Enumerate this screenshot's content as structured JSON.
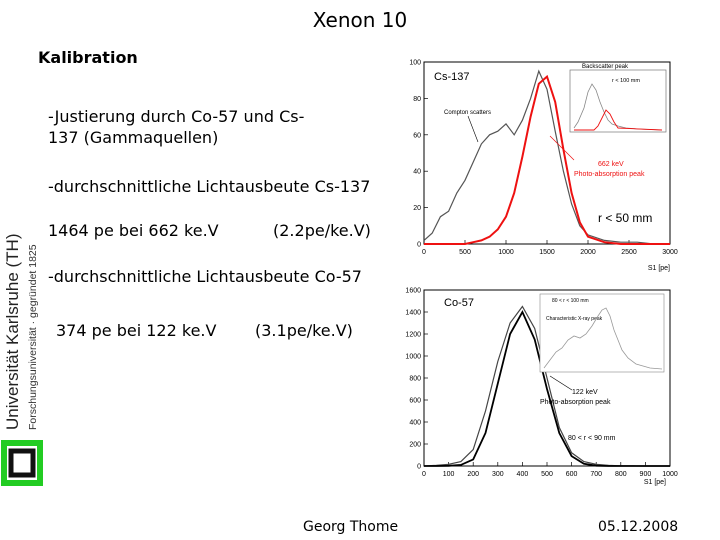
{
  "slide": {
    "title": "Xenon 10",
    "subtitle": "Kalibration",
    "bullet_justierung": "-Justierung durch Co-57 und Cs-137 (Gammaquellen)",
    "bullet_cs137": "-durchschnittliche Lichtausbeute Cs-137",
    "cs137_value": "1464 pe bei 662 ke.V",
    "cs137_ratio": "(2.2pe/ke.V)",
    "bullet_co57": "-durchschnittliche Lichtausbeute Co-57",
    "co57_value": "374 pe bei 122 ke.V",
    "co57_ratio": "(3.1pe/ke.V)"
  },
  "footer": {
    "author": "Georg Thome",
    "date": "05.12.2008"
  },
  "logo": {
    "university_name": "Universität Karlsruhe (TH)",
    "university_tagline": "Forschungsuniversität · gegründet 1825",
    "color": "#22cc22"
  },
  "chart_data": [
    {
      "type": "histogram",
      "label": "Cs-137",
      "xlabel": "S1 [pe]",
      "xlim": [
        0,
        3000
      ],
      "ylim": [
        0,
        100
      ],
      "x_ticks": [
        "0",
        "500",
        "1000",
        "1500",
        "2000",
        "2500",
        "3000"
      ],
      "y_ticks": [
        "0",
        "20",
        "40",
        "60",
        "80",
        "100"
      ],
      "annotations": [
        "Compton scatters",
        "662 keV",
        "Photo-absorption peak",
        "r < 50 mm"
      ],
      "inset": {
        "title": "Backscatter peak",
        "legend": "r < 100 mm"
      },
      "series": [
        {
          "name": "gray data",
          "color": "#555555",
          "x": [
            0,
            100,
            200,
            300,
            400,
            500,
            600,
            700,
            800,
            900,
            1000,
            1100,
            1200,
            1300,
            1400,
            1500,
            1600,
            1700,
            1800,
            1900,
            2000,
            2200,
            2400,
            2600,
            2800,
            3000
          ],
          "values": [
            2,
            6,
            15,
            18,
            28,
            35,
            45,
            55,
            60,
            62,
            66,
            60,
            68,
            80,
            95,
            85,
            62,
            40,
            22,
            10,
            5,
            2,
            1,
            1,
            0,
            0
          ]
        },
        {
          "name": "red fit",
          "color": "#ee1111",
          "x": [
            0,
            100,
            200,
            300,
            400,
            500,
            600,
            700,
            800,
            900,
            1000,
            1100,
            1200,
            1300,
            1400,
            1500,
            1600,
            1700,
            1800,
            1900,
            2000,
            2200,
            2400,
            2600,
            2800,
            3000
          ],
          "values": [
            0,
            0,
            0,
            0,
            0,
            0,
            1,
            2,
            4,
            8,
            15,
            28,
            48,
            70,
            88,
            92,
            78,
            52,
            28,
            12,
            4,
            1,
            0,
            0,
            0,
            0
          ]
        }
      ]
    },
    {
      "type": "histogram",
      "label": "Co-57",
      "xlabel": "S1 [pe]",
      "xlim": [
        0,
        1000
      ],
      "ylim": [
        0,
        1600
      ],
      "x_ticks": [
        "0",
        "100",
        "200",
        "300",
        "400",
        "500",
        "600",
        "700",
        "800",
        "900",
        "1000"
      ],
      "y_ticks": [
        "0",
        "200",
        "400",
        "600",
        "800",
        "1000",
        "1200",
        "1400",
        "1600"
      ],
      "annotations": [
        "122 keV",
        "Photo-absorption peak",
        "80 < r < 90 mm"
      ],
      "inset": {
        "title": "Characteristic X-ray peak",
        "legend": "80 < r < 100 mm"
      },
      "series": [
        {
          "name": "data",
          "color": "#444444",
          "x": [
            0,
            50,
            100,
            150,
            200,
            250,
            300,
            350,
            400,
            450,
            500,
            550,
            600,
            650,
            700,
            750,
            800,
            850,
            900,
            950,
            1000
          ],
          "values": [
            0,
            5,
            15,
            40,
            150,
            500,
            950,
            1300,
            1450,
            1250,
            800,
            350,
            120,
            40,
            15,
            5,
            2,
            1,
            0,
            0,
            0
          ]
        },
        {
          "name": "fit",
          "color": "#000000",
          "x": [
            0,
            50,
            100,
            150,
            200,
            250,
            300,
            350,
            400,
            450,
            500,
            550,
            600,
            650,
            700,
            750,
            800,
            850,
            900,
            950,
            1000
          ],
          "values": [
            0,
            0,
            2,
            10,
            60,
            300,
            750,
            1200,
            1400,
            1150,
            700,
            300,
            90,
            20,
            3,
            0,
            0,
            0,
            0,
            0,
            0
          ]
        }
      ]
    }
  ]
}
